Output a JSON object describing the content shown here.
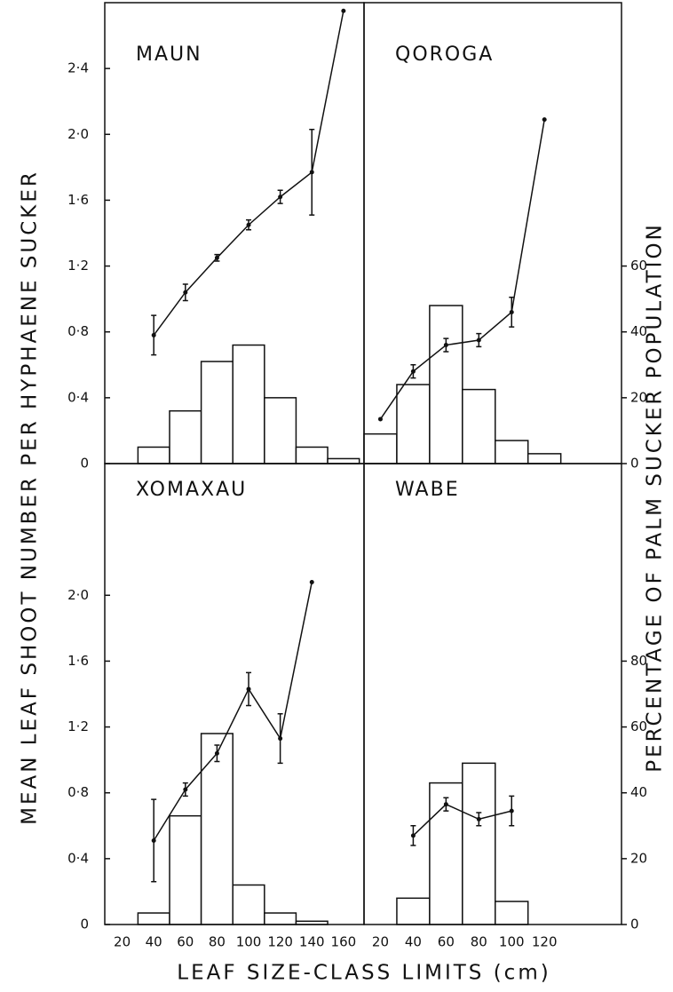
{
  "shared_labels": {
    "y_label": "MEAN LEAF SHOOT NUMBER PER HYPHAENE SUCKER",
    "y2_label": "PERCENTAGE OF PALM SUCKER POPULATION",
    "x_label": "LEAF SIZE-CLASS LIMITS (cm)"
  },
  "chart_data": [
    {
      "type": "combo",
      "title": "MAUN",
      "xlim": [
        9,
        173
      ],
      "ylim": [
        0,
        2.8
      ],
      "y2lim": [
        0,
        140
      ],
      "yticks": [
        0,
        {
          "value": 0.4,
          "label": "0·4"
        },
        {
          "value": 0.8,
          "label": "0·8"
        },
        {
          "value": 1.2,
          "label": "1·2"
        },
        {
          "value": 1.6,
          "label": "1·6"
        },
        {
          "value": 2.0,
          "label": "2·0"
        },
        {
          "value": 2.4,
          "label": "2·4"
        }
      ],
      "histogram": {
        "bins": [
          30,
          50,
          70,
          90,
          110,
          130,
          150,
          170
        ],
        "values": [
          5,
          16,
          31,
          36,
          20,
          5,
          1.5
        ],
        "axis": "y2"
      },
      "line": {
        "x": [
          40,
          60,
          80,
          100,
          120,
          140,
          160
        ],
        "values": [
          0.78,
          1.04,
          1.25,
          1.45,
          1.62,
          1.77,
          2.75
        ],
        "errors": [
          0.12,
          0.05,
          0.02,
          0.03,
          0.04,
          0.26,
          null
        ]
      }
    },
    {
      "type": "combo",
      "title": "QOROGA",
      "xlim": [
        10,
        167
      ],
      "ylim": [
        0,
        2.8
      ],
      "y2lim": [
        0,
        140
      ],
      "y2ticks": [
        0,
        20,
        40,
        60
      ],
      "histogram": {
        "bins": [
          10,
          30,
          50,
          70,
          90,
          110,
          130
        ],
        "values": [
          9,
          24,
          48,
          22.5,
          7,
          3
        ],
        "axis": "y2"
      },
      "line": {
        "x": [
          20,
          40,
          60,
          80,
          100,
          120
        ],
        "values": [
          0.27,
          0.56,
          0.72,
          0.75,
          0.92,
          2.09
        ],
        "errors": [
          null,
          0.04,
          0.04,
          0.04,
          0.09,
          null
        ]
      }
    },
    {
      "type": "combo",
      "title": "XOMAXAU",
      "xlim": [
        9,
        173
      ],
      "ylim": [
        0,
        2.8
      ],
      "y2lim": [
        0,
        140
      ],
      "yticks": [
        0,
        {
          "value": 0.4,
          "label": "0·4"
        },
        {
          "value": 0.8,
          "label": "0·8"
        },
        {
          "value": 1.2,
          "label": "1·2"
        },
        {
          "value": 1.6,
          "label": "1·6"
        },
        {
          "value": 2.0,
          "label": "2·0"
        }
      ],
      "xticks": [
        20,
        40,
        60,
        80,
        100,
        120,
        140,
        160
      ],
      "histogram": {
        "bins": [
          30,
          50,
          70,
          90,
          110,
          130,
          150
        ],
        "values": [
          3.5,
          33,
          58,
          12,
          3.5,
          1
        ],
        "axis": "y2"
      },
      "line": {
        "x": [
          40,
          60,
          80,
          100,
          120,
          140
        ],
        "values": [
          0.51,
          0.82,
          1.04,
          1.43,
          1.13,
          2.08
        ],
        "errors": [
          0.25,
          0.04,
          0.05,
          0.1,
          0.15,
          null
        ]
      }
    },
    {
      "type": "combo",
      "title": "WABE",
      "xlim": [
        10,
        167
      ],
      "ylim": [
        0,
        2.8
      ],
      "y2lim": [
        0,
        140
      ],
      "y2ticks": [
        0,
        20,
        40,
        60,
        80
      ],
      "xticks": [
        20,
        40,
        60,
        80,
        100,
        120
      ],
      "histogram": {
        "bins": [
          30,
          50,
          70,
          90,
          110
        ],
        "values": [
          8,
          43,
          49,
          7
        ],
        "axis": "y2"
      },
      "line": {
        "x": [
          40,
          60,
          80,
          100
        ],
        "values": [
          0.54,
          0.73,
          0.64,
          0.69
        ],
        "errors": [
          0.06,
          0.04,
          0.04,
          0.09
        ]
      }
    }
  ]
}
